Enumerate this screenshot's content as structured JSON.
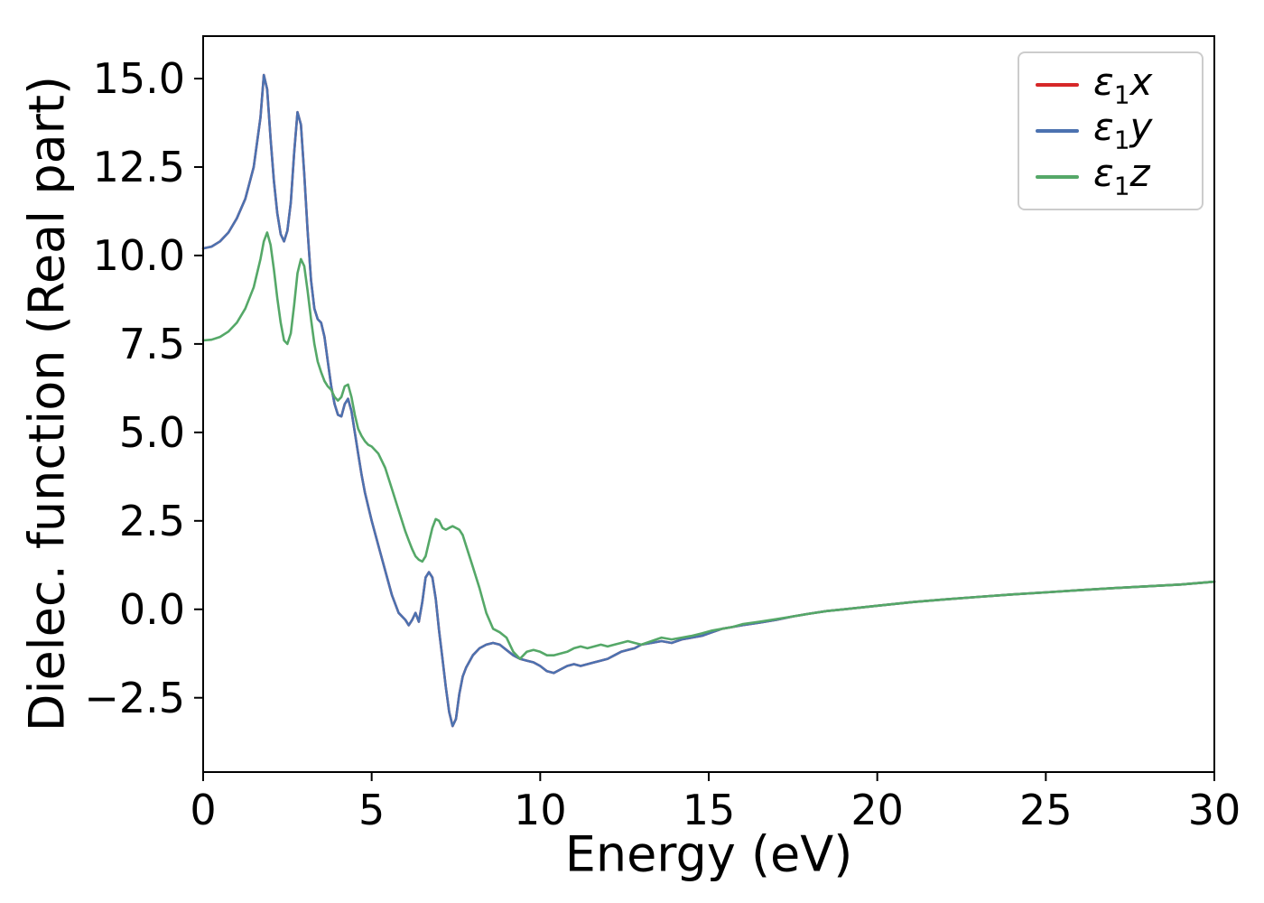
{
  "figure": {
    "background": "#ffffff"
  },
  "chart_data": {
    "type": "line",
    "title": "",
    "xlabel": "Energy (eV)",
    "ylabel": "Dielec. function (Real part)",
    "xlim": [
      0,
      30
    ],
    "ylim": [
      -4.6,
      16.2
    ],
    "xticks": [
      0,
      5,
      10,
      15,
      20,
      25,
      30
    ],
    "xtick_labels": [
      "0",
      "5",
      "10",
      "15",
      "20",
      "25",
      "30"
    ],
    "yticks": [
      -2.5,
      0.0,
      2.5,
      5.0,
      7.5,
      10.0,
      12.5,
      15.0
    ],
    "ytick_labels": [
      "−2.5",
      "0.0",
      "2.5",
      "5.0",
      "7.5",
      "10.0",
      "12.5",
      "15.0"
    ],
    "grid": false,
    "legend_position": "upper right",
    "x": [
      0,
      0.25,
      0.5,
      0.75,
      1.0,
      1.25,
      1.5,
      1.7,
      1.8,
      1.9,
      2.0,
      2.1,
      2.2,
      2.3,
      2.4,
      2.5,
      2.6,
      2.7,
      2.8,
      2.9,
      3.0,
      3.1,
      3.2,
      3.3,
      3.4,
      3.5,
      3.6,
      3.7,
      3.8,
      3.9,
      4.0,
      4.1,
      4.2,
      4.3,
      4.4,
      4.5,
      4.6,
      4.7,
      4.8,
      4.9,
      5.0,
      5.2,
      5.4,
      5.6,
      5.8,
      6.0,
      6.1,
      6.2,
      6.3,
      6.4,
      6.5,
      6.6,
      6.7,
      6.8,
      6.9,
      7.0,
      7.1,
      7.2,
      7.3,
      7.4,
      7.5,
      7.6,
      7.7,
      7.8,
      8.0,
      8.2,
      8.4,
      8.6,
      8.8,
      9.0,
      9.2,
      9.4,
      9.6,
      9.8,
      10.0,
      10.2,
      10.4,
      10.6,
      10.8,
      11.0,
      11.2,
      11.4,
      11.6,
      11.8,
      12.0,
      12.2,
      12.4,
      12.6,
      12.8,
      13.0,
      13.3,
      13.6,
      13.9,
      14.2,
      14.5,
      14.8,
      15.1,
      15.4,
      15.7,
      16.0,
      16.5,
      17.0,
      17.5,
      18.0,
      18.5,
      19.0,
      19.5,
      20.0,
      21,
      22,
      23,
      24,
      25,
      26,
      27,
      28,
      29,
      30
    ],
    "series": [
      {
        "name": "ε1x",
        "symbol": "ε",
        "sub": "1",
        "axis": "x",
        "color": "#d62728",
        "values": [
          10.2,
          10.25,
          10.4,
          10.65,
          11.05,
          11.6,
          12.5,
          13.9,
          15.1,
          14.7,
          13.3,
          12.1,
          11.2,
          10.6,
          10.4,
          10.7,
          11.5,
          12.9,
          14.05,
          13.7,
          12.3,
          10.7,
          9.3,
          8.5,
          8.2,
          8.1,
          7.7,
          7.0,
          6.3,
          5.8,
          5.5,
          5.45,
          5.8,
          5.95,
          5.6,
          5.0,
          4.4,
          3.8,
          3.3,
          2.9,
          2.5,
          1.8,
          1.1,
          0.4,
          -0.1,
          -0.3,
          -0.45,
          -0.3,
          -0.1,
          -0.35,
          0.2,
          0.9,
          1.05,
          0.9,
          0.3,
          -0.6,
          -1.4,
          -2.2,
          -2.9,
          -3.3,
          -3.1,
          -2.4,
          -1.9,
          -1.65,
          -1.3,
          -1.1,
          -1.0,
          -0.95,
          -1.0,
          -1.15,
          -1.3,
          -1.4,
          -1.45,
          -1.5,
          -1.6,
          -1.75,
          -1.8,
          -1.7,
          -1.6,
          -1.55,
          -1.6,
          -1.55,
          -1.5,
          -1.45,
          -1.4,
          -1.3,
          -1.2,
          -1.15,
          -1.1,
          -1.0,
          -0.95,
          -0.9,
          -0.95,
          -0.85,
          -0.8,
          -0.75,
          -0.65,
          -0.55,
          -0.5,
          -0.45,
          -0.38,
          -0.3,
          -0.2,
          -0.12,
          -0.05,
          0.0,
          0.05,
          0.1,
          0.2,
          0.28,
          0.35,
          0.42,
          0.48,
          0.54,
          0.6,
          0.65,
          0.7,
          0.78
        ]
      },
      {
        "name": "ε1y",
        "symbol": "ε",
        "sub": "1",
        "axis": "y",
        "color": "#4c72b0",
        "values": [
          10.2,
          10.25,
          10.4,
          10.65,
          11.05,
          11.6,
          12.5,
          13.9,
          15.1,
          14.7,
          13.3,
          12.1,
          11.2,
          10.6,
          10.4,
          10.7,
          11.5,
          12.9,
          14.05,
          13.7,
          12.3,
          10.7,
          9.3,
          8.5,
          8.2,
          8.1,
          7.7,
          7.0,
          6.3,
          5.8,
          5.5,
          5.45,
          5.8,
          5.95,
          5.6,
          5.0,
          4.4,
          3.8,
          3.3,
          2.9,
          2.5,
          1.8,
          1.1,
          0.4,
          -0.1,
          -0.3,
          -0.45,
          -0.3,
          -0.1,
          -0.35,
          0.2,
          0.9,
          1.05,
          0.9,
          0.3,
          -0.6,
          -1.4,
          -2.2,
          -2.9,
          -3.3,
          -3.1,
          -2.4,
          -1.9,
          -1.65,
          -1.3,
          -1.1,
          -1.0,
          -0.95,
          -1.0,
          -1.15,
          -1.3,
          -1.4,
          -1.45,
          -1.5,
          -1.6,
          -1.75,
          -1.8,
          -1.7,
          -1.6,
          -1.55,
          -1.6,
          -1.55,
          -1.5,
          -1.45,
          -1.4,
          -1.3,
          -1.2,
          -1.15,
          -1.1,
          -1.0,
          -0.95,
          -0.9,
          -0.95,
          -0.85,
          -0.8,
          -0.75,
          -0.65,
          -0.55,
          -0.5,
          -0.45,
          -0.38,
          -0.3,
          -0.2,
          -0.12,
          -0.05,
          0.0,
          0.05,
          0.1,
          0.2,
          0.28,
          0.35,
          0.42,
          0.48,
          0.54,
          0.6,
          0.65,
          0.7,
          0.78
        ]
      },
      {
        "name": "ε1z",
        "symbol": "ε",
        "sub": "1",
        "axis": "z",
        "color": "#55a868",
        "values": [
          7.6,
          7.62,
          7.7,
          7.85,
          8.1,
          8.5,
          9.1,
          9.9,
          10.4,
          10.65,
          10.3,
          9.6,
          8.8,
          8.1,
          7.6,
          7.5,
          7.8,
          8.6,
          9.5,
          9.9,
          9.7,
          9.0,
          8.2,
          7.5,
          7.0,
          6.7,
          6.45,
          6.3,
          6.2,
          6.0,
          5.9,
          6.0,
          6.3,
          6.35,
          6.0,
          5.5,
          5.1,
          4.9,
          4.75,
          4.65,
          4.6,
          4.4,
          4.0,
          3.4,
          2.8,
          2.2,
          1.95,
          1.7,
          1.5,
          1.4,
          1.35,
          1.5,
          1.9,
          2.3,
          2.55,
          2.5,
          2.3,
          2.25,
          2.3,
          2.35,
          2.3,
          2.25,
          2.1,
          1.8,
          1.2,
          0.6,
          -0.1,
          -0.55,
          -0.65,
          -0.8,
          -1.2,
          -1.4,
          -1.2,
          -1.15,
          -1.2,
          -1.3,
          -1.3,
          -1.25,
          -1.2,
          -1.1,
          -1.05,
          -1.1,
          -1.05,
          -1.0,
          -1.05,
          -1.0,
          -0.95,
          -0.9,
          -0.95,
          -1.0,
          -0.9,
          -0.8,
          -0.85,
          -0.8,
          -0.75,
          -0.68,
          -0.6,
          -0.55,
          -0.5,
          -0.42,
          -0.35,
          -0.28,
          -0.2,
          -0.12,
          -0.05,
          0.0,
          0.05,
          0.1,
          0.2,
          0.28,
          0.35,
          0.42,
          0.48,
          0.54,
          0.6,
          0.65,
          0.7,
          0.78
        ]
      }
    ]
  }
}
